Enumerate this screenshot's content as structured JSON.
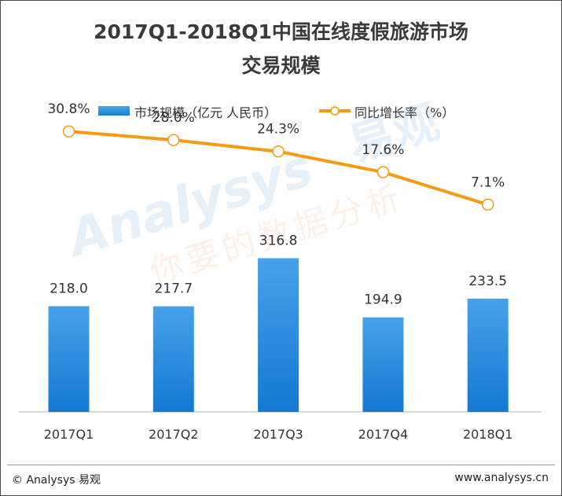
{
  "title": {
    "line1": "2017Q1-2018Q1中国在线度假旅游市场",
    "line2": "交易规模"
  },
  "legend": {
    "bar_label": "市场规模（亿元 人民币）",
    "line_label": "同比增长率（%）"
  },
  "chart_data": {
    "type": "bar",
    "categories": [
      "2017Q1",
      "2017Q2",
      "2017Q3",
      "2017Q4",
      "2018Q1"
    ],
    "series": [
      {
        "name": "市场规模（亿元 人民币）",
        "type": "bar",
        "values": [
          218.0,
          217.7,
          316.8,
          194.9,
          233.5
        ],
        "labels": [
          "218.0",
          "217.7",
          "316.8",
          "194.9",
          "233.5"
        ],
        "color": "#2a8ee0"
      },
      {
        "name": "同比增长率（%）",
        "type": "line",
        "values": [
          30.8,
          28.0,
          24.3,
          17.6,
          7.1
        ],
        "labels": [
          "30.8%",
          "28.0%",
          "24.3%",
          "17.6%",
          "7.1%"
        ],
        "color": "#f59a12"
      }
    ],
    "bar_ylim": [
      0,
      500
    ],
    "line_ylim": [
      -60,
      40
    ],
    "grid": false,
    "legend_position": "top"
  },
  "watermark": {
    "brand": "Analysys",
    "cn_brand": "易观",
    "slogan": "你要的数据分析"
  },
  "footer": {
    "left": "© Analysys 易观",
    "right": "www.analysys.cn"
  }
}
